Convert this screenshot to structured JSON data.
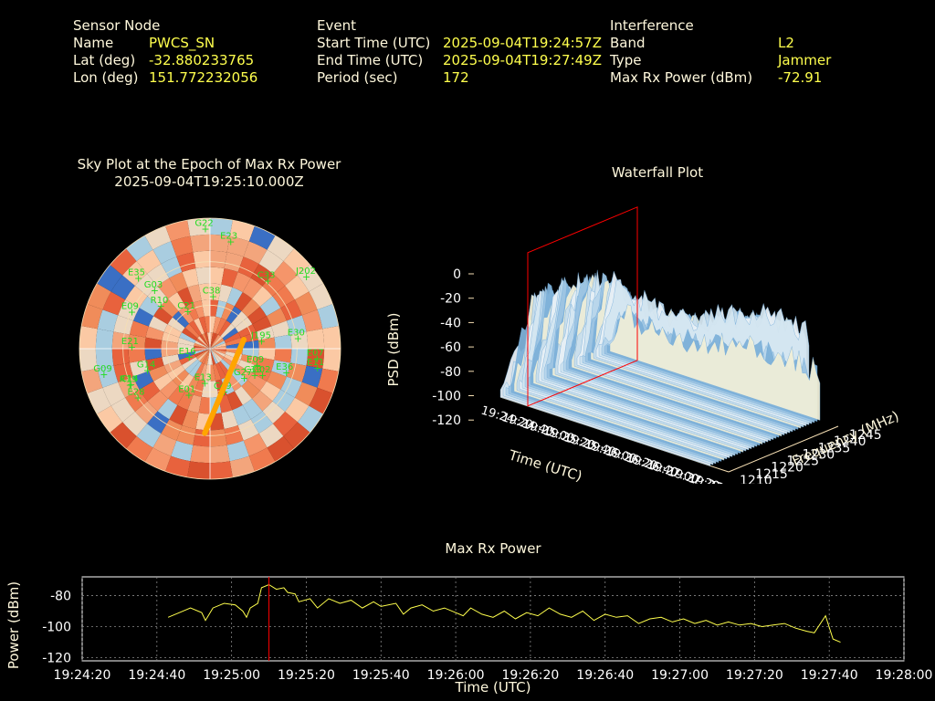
{
  "header": {
    "sensor": {
      "heading": "Sensor Node",
      "rows": [
        {
          "label": "Name",
          "value": "PWCS_SN"
        },
        {
          "label": "Lat (deg)",
          "value": "-32.880233765"
        },
        {
          "label": "Lon (deg)",
          "value": "151.772232056"
        }
      ]
    },
    "event": {
      "heading": "Event",
      "rows": [
        {
          "label": "Start Time (UTC)",
          "value": "2025-09-04T19:24:57Z"
        },
        {
          "label": "End Time (UTC)",
          "value": "2025-09-04T19:27:49Z"
        },
        {
          "label": "Period (sec)",
          "value": "172"
        }
      ]
    },
    "interference": {
      "heading": "Interference",
      "rows": [
        {
          "label": "Band",
          "value": "L2"
        },
        {
          "label": "Type",
          "value": "Jammer"
        },
        {
          "label": "Max Rx Power (dBm)",
          "value": "-72.91"
        }
      ]
    }
  },
  "colors": {
    "label": "#fff8dc",
    "value": "#ffff4d",
    "satellite": "#22dd22",
    "track": "#ffa500",
    "marker": "#ff0000",
    "grid": "#f5deb3"
  },
  "chart_data": [
    {
      "type": "scatter",
      "name": "sky-plot",
      "title": "Sky Plot at the Epoch of Max Rx Power",
      "subtitle": "2025-09-04T19:25:10.000Z",
      "satellites": [
        "G03",
        "E16",
        "C33",
        "J195",
        "G22",
        "E09",
        "C49",
        "G14",
        "E36",
        "E23",
        "C33",
        "R10",
        "E01",
        "G02",
        "R19",
        "E21",
        "C14",
        "J202",
        "G09",
        "E30",
        "E28",
        "E09",
        "E11",
        "G27",
        "C21",
        "E13",
        "C38",
        "E35",
        "E07"
      ],
      "track": {
        "description": "azimuth-elevation track of interference bearing"
      }
    },
    {
      "type": "heatmap",
      "name": "waterfall",
      "title": "Waterfall Plot",
      "zlabel": "PSD (dBm)",
      "zticks": [
        "0",
        "-20",
        "-40",
        "-60",
        "-80",
        "-100",
        "-120"
      ],
      "xlabel": "Time (UTC)",
      "xticks": [
        "19:24:20",
        "19:24:40",
        "19:25:00",
        "19:25:20",
        "19:25:40",
        "19:26:00",
        "19:26:20",
        "19:26:40",
        "19:27:00",
        "19:27:20",
        "19:27:40",
        "19:28:00"
      ],
      "ylabel": "Frequency (MHz)",
      "yticks": [
        "1210",
        "1215",
        "1220",
        "1225",
        "1230",
        "1235",
        "1240",
        "1245"
      ]
    },
    {
      "type": "line",
      "name": "max-rx-power",
      "title": "Max Rx Power",
      "xlabel": "Time (UTC)",
      "ylabel": "Power (dBm)",
      "xticks": [
        "19:24:20",
        "19:24:40",
        "19:25:00",
        "19:25:20",
        "19:25:40",
        "19:26:00",
        "19:26:20",
        "19:26:40",
        "19:27:00",
        "19:27:20",
        "19:27:40",
        "19:28:00"
      ],
      "yticks": [
        "-80",
        "-100",
        "-120"
      ],
      "xlim": [
        0,
        220
      ],
      "ylim": [
        -122,
        -68
      ],
      "marker_x": 50,
      "x": [
        23,
        26,
        29,
        32,
        33,
        35,
        37,
        38,
        41,
        43,
        44,
        45,
        47,
        48,
        50,
        52,
        54,
        55,
        57,
        58,
        61,
        63,
        66,
        69,
        72,
        75,
        78,
        80,
        84,
        86,
        88,
        91,
        94,
        97,
        100,
        102,
        104,
        107,
        110,
        113,
        116,
        119,
        122,
        125,
        128,
        131,
        134,
        137,
        140,
        143,
        146,
        149,
        152,
        155,
        158,
        161,
        164,
        167,
        170,
        173,
        176,
        179,
        182,
        185,
        188,
        191,
        194,
        196,
        199,
        201,
        203
      ],
      "y": [
        -94,
        -91,
        -88,
        -91,
        -96,
        -88,
        -86,
        -85,
        -86,
        -90,
        -94,
        -88,
        -85,
        -75,
        -73,
        -76,
        -75,
        -78,
        -79,
        -84,
        -82,
        -88,
        -82,
        -85,
        -83,
        -88,
        -84,
        -87,
        -85,
        -92,
        -88,
        -86,
        -90,
        -88,
        -91,
        -93,
        -88,
        -92,
        -94,
        -90,
        -95,
        -91,
        -93,
        -88,
        -92,
        -94,
        -90,
        -96,
        -92,
        -94,
        -93,
        -98,
        -95,
        -94,
        -97,
        -95,
        -98,
        -96,
        -99,
        -97,
        -99,
        -98,
        -100,
        -99,
        -98,
        -101,
        -103,
        -104,
        -93,
        -108,
        -110
      ]
    }
  ]
}
